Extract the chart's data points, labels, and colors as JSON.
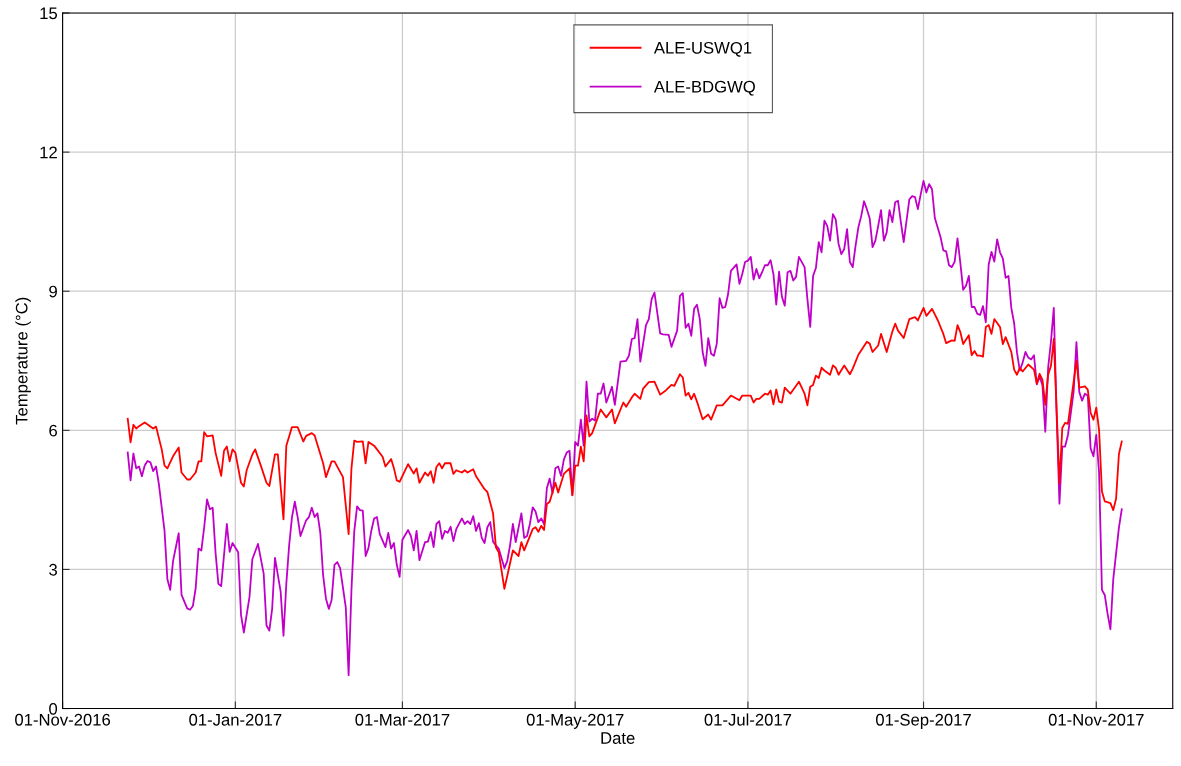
{
  "chart_data": {
    "type": "line",
    "xlabel": "Date",
    "ylabel": "Temperature (°C)",
    "xlim": [
      "2016-11-01",
      "2017-11-28"
    ],
    "ylim": [
      0,
      15
    ],
    "yticks": [
      0,
      3,
      6,
      9,
      12,
      15
    ],
    "xticks": [
      {
        "value": "2016-11-01",
        "label": "01-Nov-2016"
      },
      {
        "value": "2017-01-01",
        "label": "01-Jan-2017"
      },
      {
        "value": "2017-03-01",
        "label": "01-Mar-2017"
      },
      {
        "value": "2017-05-01",
        "label": "01-May-2017"
      },
      {
        "value": "2017-07-01",
        "label": "01-Jul-2017"
      },
      {
        "value": "2017-09-01",
        "label": "01-Sep-2017"
      },
      {
        "value": "2017-11-01",
        "label": "01-Nov-2017"
      }
    ],
    "grid": true,
    "legend": "top",
    "line_style": "solid",
    "marker": "none",
    "series": [
      {
        "name": "ALE-USWQ1",
        "color": "#ff0000",
        "x": [
          "2016-11-24",
          "2016-11-25",
          "2016-11-26",
          "2016-11-27",
          "2016-11-28",
          "2016-11-30",
          "2016-12-03",
          "2016-12-04",
          "2016-12-06",
          "2016-12-07",
          "2016-12-08",
          "2016-12-10",
          "2016-12-12",
          "2016-12-13",
          "2016-12-15",
          "2016-12-16",
          "2016-12-18",
          "2016-12-19",
          "2016-12-20",
          "2016-12-21",
          "2016-12-22",
          "2016-12-24",
          "2016-12-25",
          "2016-12-27",
          "2016-12-28",
          "2016-12-29",
          "2016-12-30",
          "2016-12-31",
          "2017-01-01",
          "2017-01-03",
          "2017-01-04",
          "2017-01-05",
          "2017-01-07",
          "2017-01-08",
          "2017-01-10",
          "2017-01-12",
          "2017-01-13",
          "2017-01-15",
          "2017-01-16",
          "2017-01-18",
          "2017-01-19",
          "2017-01-21",
          "2017-01-23",
          "2017-01-25",
          "2017-01-26",
          "2017-01-28",
          "2017-01-29",
          "2017-02-01",
          "2017-02-02",
          "2017-02-04",
          "2017-02-05",
          "2017-02-08",
          "2017-02-10",
          "2017-02-11",
          "2017-02-12",
          "2017-02-13",
          "2017-02-15",
          "2017-02-16",
          "2017-02-17",
          "2017-02-19",
          "2017-02-22",
          "2017-02-23",
          "2017-02-25",
          "2017-02-26",
          "2017-02-27",
          "2017-02-28",
          "2017-03-03",
          "2017-03-05",
          "2017-03-06",
          "2017-03-07",
          "2017-03-09",
          "2017-03-10",
          "2017-03-11",
          "2017-03-12",
          "2017-03-13",
          "2017-03-14",
          "2017-03-15",
          "2017-03-16",
          "2017-03-18",
          "2017-03-19",
          "2017-03-20",
          "2017-03-22",
          "2017-03-23",
          "2017-03-24",
          "2017-03-26",
          "2017-03-27",
          "2017-03-30",
          "2017-03-31",
          "2017-04-02",
          "2017-04-03",
          "2017-04-04",
          "2017-04-06",
          "2017-04-09",
          "2017-04-11",
          "2017-04-12",
          "2017-04-13",
          "2017-04-16",
          "2017-04-17",
          "2017-04-18",
          "2017-04-19",
          "2017-04-20",
          "2017-04-21",
          "2017-04-22",
          "2017-04-24",
          "2017-04-25",
          "2017-04-27",
          "2017-04-29",
          "2017-04-30",
          "2017-05-01",
          "2017-05-02",
          "2017-05-03",
          "2017-05-04",
          "2017-05-05",
          "2017-05-06",
          "2017-05-07",
          "2017-05-09",
          "2017-05-10",
          "2017-05-12",
          "2017-05-14",
          "2017-05-15",
          "2017-05-18",
          "2017-05-19",
          "2017-05-21",
          "2017-05-22",
          "2017-05-24",
          "2017-05-25",
          "2017-05-27",
          "2017-05-29",
          "2017-05-31",
          "2017-06-02",
          "2017-06-04",
          "2017-06-05",
          "2017-06-07",
          "2017-06-08",
          "2017-06-09",
          "2017-06-10",
          "2017-06-11",
          "2017-06-12",
          "2017-06-13",
          "2017-06-15",
          "2017-06-17",
          "2017-06-18",
          "2017-06-20",
          "2017-06-22",
          "2017-06-25",
          "2017-06-28",
          "2017-06-29",
          "2017-07-02",
          "2017-07-03",
          "2017-07-04",
          "2017-07-05",
          "2017-07-07",
          "2017-07-08",
          "2017-07-09",
          "2017-07-10",
          "2017-07-11",
          "2017-07-12",
          "2017-07-13",
          "2017-07-14",
          "2017-07-16",
          "2017-07-19",
          "2017-07-21",
          "2017-07-22",
          "2017-07-23",
          "2017-07-24",
          "2017-07-25",
          "2017-07-26",
          "2017-07-27",
          "2017-07-28",
          "2017-07-30",
          "2017-07-31",
          "2017-08-01",
          "2017-08-02",
          "2017-08-04",
          "2017-08-06",
          "2017-08-07",
          "2017-08-09",
          "2017-08-12",
          "2017-08-13",
          "2017-08-14",
          "2017-08-16",
          "2017-08-17",
          "2017-08-19",
          "2017-08-21",
          "2017-08-22",
          "2017-08-23",
          "2017-08-25",
          "2017-08-27",
          "2017-08-29",
          "2017-08-30",
          "2017-09-01",
          "2017-09-02",
          "2017-09-04",
          "2017-09-06",
          "2017-09-08",
          "2017-09-09",
          "2017-09-11",
          "2017-09-12",
          "2017-09-13",
          "2017-09-14",
          "2017-09-15",
          "2017-09-17",
          "2017-09-18",
          "2017-09-19",
          "2017-09-20",
          "2017-09-21",
          "2017-09-22",
          "2017-09-23",
          "2017-09-24",
          "2017-09-25",
          "2017-09-26",
          "2017-09-28",
          "2017-09-29",
          "2017-09-30",
          "2017-10-02",
          "2017-10-03",
          "2017-10-04",
          "2017-10-05",
          "2017-10-06",
          "2017-10-08",
          "2017-10-10",
          "2017-10-11",
          "2017-10-12",
          "2017-10-13",
          "2017-10-14",
          "2017-10-15",
          "2017-10-16",
          "2017-10-17",
          "2017-10-18",
          "2017-10-19",
          "2017-10-20",
          "2017-10-21",
          "2017-10-22",
          "2017-10-25",
          "2017-10-26",
          "2017-10-28",
          "2017-10-29",
          "2017-10-30",
          "2017-10-31",
          "2017-11-01",
          "2017-11-02",
          "2017-11-03",
          "2017-11-04",
          "2017-11-06",
          "2017-11-07",
          "2017-11-08",
          "2017-11-09",
          "2017-11-10"
        ],
        "values": [
          6.25,
          5.74,
          6.12,
          6.04,
          6.09,
          6.17,
          6.04,
          6.08,
          5.59,
          5.24,
          5.18,
          5.44,
          5.63,
          5.09,
          4.94,
          4.94,
          5.09,
          5.33,
          5.33,
          5.96,
          5.87,
          5.89,
          5.52,
          5.02,
          5.56,
          5.65,
          5.33,
          5.59,
          5.52,
          4.87,
          4.79,
          5.14,
          5.48,
          5.59,
          5.24,
          4.87,
          4.8,
          5.48,
          5.48,
          4.08,
          5.67,
          6.07,
          6.07,
          5.76,
          5.88,
          5.94,
          5.89,
          5.29,
          4.99,
          5.33,
          5.33,
          4.99,
          3.76,
          5.18,
          5.78,
          5.75,
          5.76,
          5.29,
          5.75,
          5.67,
          5.43,
          5.22,
          5.38,
          5.18,
          4.92,
          4.89,
          5.27,
          5.07,
          5.18,
          4.87,
          5.09,
          5.02,
          5.12,
          4.87,
          5.21,
          5.29,
          5.18,
          5.29,
          5.29,
          5.06,
          5.14,
          5.09,
          5.14,
          5.09,
          5.16,
          5.01,
          4.73,
          4.67,
          4.21,
          3.48,
          3.37,
          2.58,
          3.41,
          3.29,
          3.59,
          3.41,
          3.87,
          3.91,
          3.81,
          3.94,
          3.85,
          4.41,
          4.46,
          4.87,
          4.66,
          5.06,
          5.18,
          4.6,
          5.24,
          5.24,
          5.65,
          5.33,
          6.32,
          5.87,
          5.94,
          6.28,
          6.45,
          6.28,
          6.45,
          6.15,
          6.6,
          6.51,
          6.71,
          6.79,
          6.68,
          6.9,
          7.04,
          7.05,
          6.77,
          6.86,
          6.98,
          6.96,
          7.21,
          7.14,
          6.75,
          6.81,
          6.67,
          6.79,
          6.62,
          6.24,
          6.34,
          6.23,
          6.54,
          6.54,
          6.75,
          6.65,
          6.75,
          6.75,
          6.6,
          6.68,
          6.68,
          6.79,
          6.77,
          6.86,
          6.56,
          6.88,
          6.62,
          6.6,
          6.92,
          6.79,
          7.05,
          6.79,
          6.54,
          6.94,
          6.98,
          7.18,
          7.13,
          7.35,
          7.29,
          7.2,
          7.4,
          7.35,
          7.2,
          7.4,
          7.21,
          7.33,
          7.63,
          7.91,
          7.87,
          7.69,
          7.83,
          8.08,
          7.69,
          8.13,
          8.3,
          8.15,
          7.99,
          8.4,
          8.44,
          8.37,
          8.64,
          8.47,
          8.62,
          8.38,
          8.08,
          7.88,
          7.94,
          7.93,
          8.27,
          8.12,
          7.86,
          8.05,
          7.62,
          7.71,
          7.61,
          7.61,
          7.59,
          8.23,
          8.27,
          8.08,
          8.4,
          8.23,
          7.86,
          8.01,
          7.69,
          7.31,
          7.2,
          7.35,
          7.27,
          7.42,
          7.31,
          7.01,
          7.22,
          7.09,
          6.55,
          7.2,
          7.39,
          7.97,
          6.43,
          4.86,
          6.05,
          6.16,
          6.14,
          7.5,
          6.92,
          6.95,
          6.88,
          6.38,
          6.23,
          6.49,
          6.0,
          4.68,
          4.47,
          4.43,
          4.28,
          4.53,
          5.49,
          5.76
        ]
      },
      {
        "name": "ALE-BDGWQ",
        "color": "#c000c8",
        "x": [
          "2016-11-24",
          "2016-11-25",
          "2016-11-26",
          "2016-11-27",
          "2016-11-28",
          "2016-11-29",
          "2016-11-30",
          "2016-12-01",
          "2016-12-02",
          "2016-12-03",
          "2016-12-04",
          "2016-12-05",
          "2016-12-07",
          "2016-12-08",
          "2016-12-09",
          "2016-12-10",
          "2016-12-12",
          "2016-12-13",
          "2016-12-15",
          "2016-12-16",
          "2016-12-17",
          "2016-12-18",
          "2016-12-19",
          "2016-12-20",
          "2016-12-21",
          "2016-12-22",
          "2016-12-23",
          "2016-12-24",
          "2016-12-25",
          "2016-12-26",
          "2016-12-27",
          "2016-12-29",
          "2016-12-30",
          "2016-12-31",
          "2017-01-02",
          "2017-01-03",
          "2017-01-04",
          "2017-01-06",
          "2017-01-07",
          "2017-01-09",
          "2017-01-11",
          "2017-01-12",
          "2017-01-13",
          "2017-01-14",
          "2017-01-15",
          "2017-01-17",
          "2017-01-18",
          "2017-01-19",
          "2017-01-20",
          "2017-01-21",
          "2017-01-22",
          "2017-01-23",
          "2017-01-24",
          "2017-01-26",
          "2017-01-27",
          "2017-01-28",
          "2017-01-29",
          "2017-01-30",
          "2017-01-31",
          "2017-02-01",
          "2017-02-02",
          "2017-02-03",
          "2017-02-04",
          "2017-02-05",
          "2017-02-06",
          "2017-02-07",
          "2017-02-09",
          "2017-02-10",
          "2017-02-11",
          "2017-02-12",
          "2017-02-13",
          "2017-02-14",
          "2017-02-15",
          "2017-02-16",
          "2017-02-17",
          "2017-02-18",
          "2017-02-19",
          "2017-02-20",
          "2017-02-21",
          "2017-02-23",
          "2017-02-24",
          "2017-02-25",
          "2017-02-26",
          "2017-02-27",
          "2017-02-28",
          "2017-03-01",
          "2017-03-03",
          "2017-03-04",
          "2017-03-05",
          "2017-03-06",
          "2017-03-07",
          "2017-03-09",
          "2017-03-10",
          "2017-03-11",
          "2017-03-12",
          "2017-03-13",
          "2017-03-14",
          "2017-03-15",
          "2017-03-16",
          "2017-03-17",
          "2017-03-18",
          "2017-03-19",
          "2017-03-20",
          "2017-03-22",
          "2017-03-23",
          "2017-03-24",
          "2017-03-25",
          "2017-03-26",
          "2017-03-27",
          "2017-03-28",
          "2017-03-29",
          "2017-03-30",
          "2017-03-31",
          "2017-04-01",
          "2017-04-02",
          "2017-04-03",
          "2017-04-04",
          "2017-04-06",
          "2017-04-07",
          "2017-04-08",
          "2017-04-09",
          "2017-04-10",
          "2017-04-12",
          "2017-04-13",
          "2017-04-14",
          "2017-04-15",
          "2017-04-16",
          "2017-04-17",
          "2017-04-18",
          "2017-04-19",
          "2017-04-20",
          "2017-04-21",
          "2017-04-22",
          "2017-04-23",
          "2017-04-24",
          "2017-04-25",
          "2017-04-26",
          "2017-04-27",
          "2017-04-28",
          "2017-04-29",
          "2017-04-30",
          "2017-05-01",
          "2017-05-02",
          "2017-05-03",
          "2017-05-04",
          "2017-05-05",
          "2017-05-06",
          "2017-05-07",
          "2017-05-08",
          "2017-05-09",
          "2017-05-10",
          "2017-05-11",
          "2017-05-12",
          "2017-05-14",
          "2017-05-15",
          "2017-05-17",
          "2017-05-19",
          "2017-05-20",
          "2017-05-21",
          "2017-05-22",
          "2017-05-23",
          "2017-05-24",
          "2017-05-26",
          "2017-05-27",
          "2017-05-28",
          "2017-05-29",
          "2017-05-31",
          "2017-06-01",
          "2017-06-03",
          "2017-06-04",
          "2017-06-06",
          "2017-06-07",
          "2017-06-08",
          "2017-06-09",
          "2017-06-10",
          "2017-06-11",
          "2017-06-12",
          "2017-06-13",
          "2017-06-14",
          "2017-06-15",
          "2017-06-16",
          "2017-06-17",
          "2017-06-18",
          "2017-06-19",
          "2017-06-20",
          "2017-06-21",
          "2017-06-22",
          "2017-06-23",
          "2017-06-24",
          "2017-06-25",
          "2017-06-27",
          "2017-06-28",
          "2017-06-29",
          "2017-06-30",
          "2017-07-01",
          "2017-07-02",
          "2017-07-03",
          "2017-07-04",
          "2017-07-05",
          "2017-07-06",
          "2017-07-07",
          "2017-07-08",
          "2017-07-09",
          "2017-07-10",
          "2017-07-11",
          "2017-07-12",
          "2017-07-13",
          "2017-07-14",
          "2017-07-15",
          "2017-07-16",
          "2017-07-17",
          "2017-07-18",
          "2017-07-19",
          "2017-07-21",
          "2017-07-22",
          "2017-07-23",
          "2017-07-24",
          "2017-07-25",
          "2017-07-26",
          "2017-07-27",
          "2017-07-28",
          "2017-07-29",
          "2017-07-30",
          "2017-07-31",
          "2017-08-01",
          "2017-08-02",
          "2017-08-03",
          "2017-08-04",
          "2017-08-05",
          "2017-08-06",
          "2017-08-07",
          "2017-08-08",
          "2017-08-09",
          "2017-08-10",
          "2017-08-11",
          "2017-08-12",
          "2017-08-13",
          "2017-08-14",
          "2017-08-15",
          "2017-08-16",
          "2017-08-17",
          "2017-08-18",
          "2017-08-19",
          "2017-08-20",
          "2017-08-21",
          "2017-08-22",
          "2017-08-23",
          "2017-08-24",
          "2017-08-25",
          "2017-08-26",
          "2017-08-27",
          "2017-08-28",
          "2017-08-29",
          "2017-08-30",
          "2017-08-31",
          "2017-09-01",
          "2017-09-02",
          "2017-09-03",
          "2017-09-04",
          "2017-09-05",
          "2017-09-07",
          "2017-09-08",
          "2017-09-09",
          "2017-09-10",
          "2017-09-11",
          "2017-09-12",
          "2017-09-13",
          "2017-09-14",
          "2017-09-15",
          "2017-09-16",
          "2017-09-17",
          "2017-09-18",
          "2017-09-19",
          "2017-09-20",
          "2017-09-21",
          "2017-09-22",
          "2017-09-23",
          "2017-09-24",
          "2017-09-25",
          "2017-09-26",
          "2017-09-27",
          "2017-09-28",
          "2017-09-29",
          "2017-09-30",
          "2017-10-01",
          "2017-10-02",
          "2017-10-03",
          "2017-10-04",
          "2017-10-05",
          "2017-10-06",
          "2017-10-07",
          "2017-10-08",
          "2017-10-09",
          "2017-10-10",
          "2017-10-11",
          "2017-10-12",
          "2017-10-13",
          "2017-10-14",
          "2017-10-15",
          "2017-10-16",
          "2017-10-17",
          "2017-10-18",
          "2017-10-19",
          "2017-10-20",
          "2017-10-21",
          "2017-10-22",
          "2017-10-24",
          "2017-10-25",
          "2017-10-26",
          "2017-10-27",
          "2017-10-28",
          "2017-10-29",
          "2017-10-30",
          "2017-10-31",
          "2017-11-01",
          "2017-11-02",
          "2017-11-03",
          "2017-11-04",
          "2017-11-05",
          "2017-11-06",
          "2017-11-07",
          "2017-11-09",
          "2017-11-10"
        ],
        "values": [
          5.52,
          4.92,
          5.5,
          5.18,
          5.22,
          5.01,
          5.24,
          5.34,
          5.31,
          5.12,
          5.22,
          4.84,
          3.83,
          2.79,
          2.56,
          3.18,
          3.78,
          2.45,
          2.16,
          2.13,
          2.21,
          2.6,
          3.45,
          3.41,
          3.91,
          4.51,
          4.3,
          4.33,
          3.37,
          2.69,
          2.64,
          3.98,
          3.38,
          3.57,
          3.37,
          2.02,
          1.64,
          2.41,
          3.22,
          3.55,
          2.91,
          1.79,
          1.68,
          2.15,
          3.25,
          2.52,
          1.57,
          2.69,
          3.52,
          4.13,
          4.46,
          4.13,
          3.72,
          4.06,
          4.13,
          4.33,
          4.13,
          4.21,
          3.79,
          2.87,
          2.37,
          2.15,
          2.34,
          3.1,
          3.16,
          3.03,
          2.18,
          0.72,
          2.56,
          3.83,
          4.36,
          4.28,
          4.27,
          3.29,
          3.46,
          3.83,
          4.1,
          4.13,
          3.76,
          3.48,
          3.79,
          3.45,
          3.57,
          3.1,
          2.84,
          3.64,
          3.85,
          3.72,
          3.41,
          3.83,
          3.2,
          3.59,
          3.6,
          3.81,
          3.48,
          3.98,
          4.04,
          3.66,
          3.83,
          3.79,
          3.92,
          3.61,
          3.87,
          4.1,
          3.98,
          4.04,
          3.98,
          4.15,
          3.83,
          4.0,
          3.68,
          3.57,
          3.91,
          4.02,
          3.6,
          3.52,
          3.45,
          3.03,
          3.18,
          3.52,
          3.98,
          3.59,
          4.21,
          3.68,
          3.72,
          3.98,
          4.34,
          4.25,
          4.02,
          4.1,
          3.98,
          4.75,
          4.96,
          4.64,
          5.18,
          5.22,
          5.02,
          5.37,
          5.52,
          5.56,
          4.6,
          5.75,
          5.67,
          6.23,
          5.67,
          7.05,
          6.19,
          6.25,
          6.21,
          6.79,
          6.79,
          7.01,
          6.6,
          6.94,
          6.55,
          7.48,
          7.5,
          7.61,
          7.97,
          7.99,
          8.4,
          7.48,
          8.27,
          8.4,
          8.83,
          8.97,
          8.09,
          8.07,
          8.06,
          7.8,
          8.15,
          8.9,
          8.96,
          8.21,
          8.3,
          8.04,
          8.62,
          8.71,
          8.4,
          7.69,
          7.39,
          7.99,
          7.65,
          7.61,
          7.87,
          8.85,
          8.64,
          8.66,
          8.94,
          9.44,
          9.58,
          9.16,
          9.37,
          9.63,
          9.66,
          9.74,
          9.25,
          9.48,
          9.28,
          9.41,
          9.56,
          9.56,
          9.67,
          9.37,
          8.71,
          9.42,
          8.88,
          8.69,
          9.41,
          9.44,
          9.23,
          9.31,
          9.74,
          9.52,
          8.83,
          8.23,
          9.33,
          9.5,
          10.06,
          9.84,
          10.52,
          10.41,
          10.09,
          10.66,
          10.55,
          10.02,
          9.8,
          9.91,
          10.34,
          9.63,
          9.52,
          9.98,
          10.38,
          10.62,
          10.94,
          10.77,
          10.57,
          9.95,
          10.09,
          10.41,
          10.75,
          10.09,
          10.27,
          10.75,
          10.49,
          10.92,
          10.95,
          10.49,
          10.06,
          10.52,
          10.98,
          11.05,
          11.03,
          10.77,
          11.09,
          11.38,
          11.13,
          11.31,
          11.2,
          10.58,
          10.17,
          9.88,
          9.86,
          9.56,
          9.52,
          9.64,
          10.14,
          9.61,
          9.03,
          9.12,
          9.33,
          8.66,
          8.66,
          8.51,
          8.49,
          8.68,
          8.33,
          9.57,
          9.85,
          9.64,
          10.12,
          9.84,
          9.71,
          9.29,
          9.33,
          8.64,
          8.31,
          7.68,
          7.29,
          7.46,
          7.69,
          7.57,
          7.53,
          7.62,
          6.99,
          7.16,
          6.97,
          5.97,
          7.35,
          7.91,
          8.64,
          6.34,
          4.42,
          5.65,
          5.65,
          5.9,
          6.83,
          7.9,
          6.83,
          6.64,
          6.79,
          6.75,
          5.61,
          5.44,
          5.9,
          5.08,
          2.56,
          2.45,
          2.04,
          1.71,
          2.79,
          3.9,
          4.3
        ]
      }
    ]
  }
}
